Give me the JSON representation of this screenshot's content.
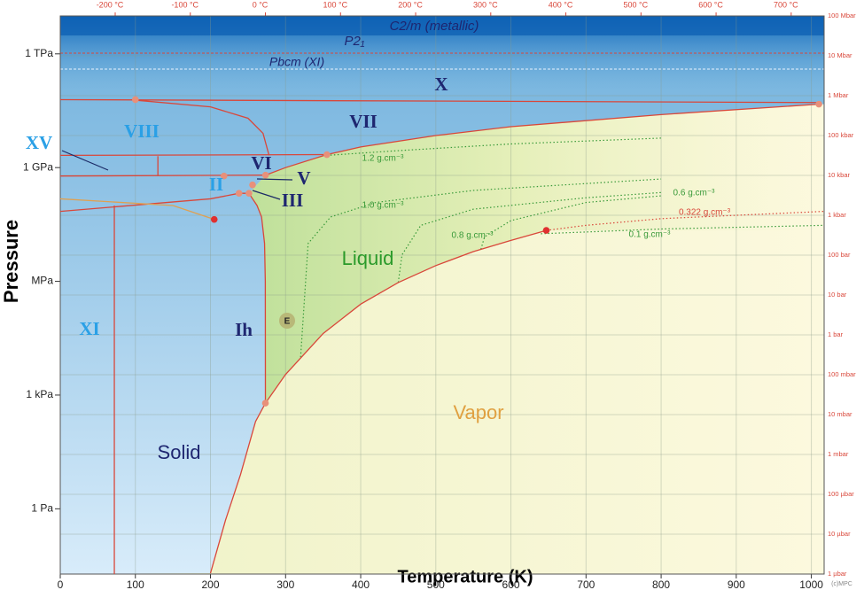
{
  "chart_data": {
    "type": "phase-diagram",
    "x_label": "Temperature (K)",
    "y_label": "Pressure",
    "xlim": [
      0,
      1017
    ],
    "xticks": [
      0,
      100,
      200,
      300,
      400,
      500,
      600,
      700,
      800,
      900,
      1000
    ],
    "ylim": [
      0.019,
      10000000000000.0
    ],
    "log_y": true,
    "yticks": [
      {
        "value": 1,
        "label": "1 Pa"
      },
      {
        "value": 1000,
        "label": "1 kPa"
      },
      {
        "value": 1000000,
        "label": "MPa"
      },
      {
        "value": 1000000000,
        "label": "1 GPa"
      },
      {
        "value": 1000000000000,
        "label": "1 TPa"
      }
    ],
    "x2lim": [
      -273.15,
      743.85
    ],
    "x2ticks": [
      {
        "value": -200,
        "label": "-200 °C"
      },
      {
        "value": -100,
        "label": "-100 °C"
      },
      {
        "value": 0,
        "label": "0 °C"
      },
      {
        "value": 100,
        "label": "100 °C"
      },
      {
        "value": 200,
        "label": "200 °C"
      },
      {
        "value": 300,
        "label": "300 °C"
      },
      {
        "value": 400,
        "label": "400 °C"
      },
      {
        "value": 500,
        "label": "500 °C"
      },
      {
        "value": 600,
        "label": "600 °C"
      },
      {
        "value": 700,
        "label": "700 °C"
      }
    ],
    "y2lim": [
      1e-06,
      100000000.0
    ],
    "y2ticks": [
      {
        "value": 1e-06,
        "label": "1 µbar"
      },
      {
        "value": 1e-05,
        "label": "10 µbar"
      },
      {
        "value": 0.0001,
        "label": "100 µbar"
      },
      {
        "value": 0.001,
        "label": "1 mbar"
      },
      {
        "value": 0.01,
        "label": "10 mbar"
      },
      {
        "value": 0.1,
        "label": "100 mbar"
      },
      {
        "value": 1,
        "label": "1 bar"
      },
      {
        "value": 10,
        "label": "10 bar"
      },
      {
        "value": 100,
        "label": "100 bar"
      },
      {
        "value": 1000,
        "label": "1 kbar"
      },
      {
        "value": 10000,
        "label": "10 kbar"
      },
      {
        "value": 100000,
        "label": "100 kbar"
      },
      {
        "value": 1000000,
        "label": "1 Mbar"
      },
      {
        "value": 10000000,
        "label": "10 Mbar"
      },
      {
        "value": 100000000,
        "label": "100 Mbar"
      }
    ],
    "grid": true,
    "boundaries": [
      {
        "color": "#d9473a",
        "x": [
          200,
          220,
          240,
          260,
          273.16
        ],
        "y": [
          0.02,
          0.5,
          8,
          200,
          611.657
        ]
      },
      {
        "color": "#d9473a",
        "x": [
          273.16,
          300,
          350,
          400,
          450,
          500,
          550,
          600,
          647.1
        ],
        "y": [
          611.657,
          3500,
          42000,
          250000,
          930000,
          2600000,
          6100000,
          12000000,
          22064000
        ]
      },
      {
        "color": "#d9473a",
        "x": [
          273.16,
          273,
          272,
          268,
          262,
          251.2
        ],
        "y": [
          611.657,
          1000000,
          10000000,
          50000000,
          100000000,
          210000000
        ]
      },
      {
        "color": "#d9473a",
        "x": [
          273.3,
          300,
          355
        ],
        "y": [
          632000000,
          1000000000,
          2200000000
        ]
      },
      {
        "color": "#d9473a",
        "x": [
          355,
          400,
          500,
          600,
          800,
          1010
        ],
        "y": [
          2200000000,
          3500000000,
          7000000000,
          12000000000,
          25000000000,
          47000000000
        ]
      },
      {
        "color": "#d9473a",
        "x": [
          0,
          1010
        ],
        "y": [
          62000000000,
          52000000000
        ]
      },
      {
        "color": "#d9473a",
        "x": [
          100,
          200,
          250,
          270,
          278
        ],
        "y": [
          60000000000,
          40000000000,
          20000000000,
          8000000000,
          2100000000
        ]
      },
      {
        "color": "#d9473a",
        "x": [
          0,
          355
        ],
        "y": [
          2100000000,
          2200000000
        ]
      },
      {
        "color": "#d9473a",
        "x": [
          0,
          273.3
        ],
        "y": [
          600000000,
          632000000
        ]
      },
      {
        "color": "#d9473a",
        "x": [
          0,
          200,
          238,
          251.2
        ],
        "y": [
          70000000,
          150000000,
          210000000,
          210000000
        ]
      },
      {
        "color": "#d9473a",
        "x": [
          72,
          72
        ],
        "y": [
          0.019,
          100000000
        ]
      },
      {
        "color": "#d9473a",
        "x": [
          130,
          130
        ],
        "y": [
          600000000,
          2000000000
        ]
      },
      {
        "color": "#e0a050",
        "x": [
          0,
          150,
          205
        ],
        "y": [
          150000000,
          100000000,
          43000000
        ]
      }
    ],
    "isochores": [
      {
        "label": "1.2 g.cm⁻³",
        "color": "#3a9a3a",
        "x": [
          355,
          450,
          600,
          800
        ],
        "y": [
          2100000000,
          2800000000,
          4200000000,
          6000000000
        ]
      },
      {
        "label": "1.0 g.cm⁻³",
        "color": "#3a9a3a",
        "x": [
          320,
          330,
          360,
          420,
          550,
          800
        ],
        "y": [
          10000,
          10000000,
          50000000,
          120000000,
          250000000,
          500000000
        ]
      },
      {
        "label": "0.8 g.cm⁻³",
        "color": "#3a9a3a",
        "x": [
          450,
          455,
          480,
          550,
          700,
          800
        ],
        "y": [
          930000,
          5000000,
          30000000,
          80000000,
          160000000,
          220000000
        ]
      },
      {
        "label": "0.6 g.cm⁻³",
        "color": "#3a9a3a",
        "x": [
          560,
          565,
          600,
          700,
          800
        ],
        "y": [
          7000000,
          15000000,
          40000000,
          120000000,
          180000000
        ]
      },
      {
        "label": "0.322 g.cm⁻³",
        "color": "#d9473a",
        "x": [
          647.1,
          700,
          800,
          1017
        ],
        "y": [
          22064000,
          30000000,
          45000000,
          70000000
        ]
      },
      {
        "label": "0.1 g.cm⁻³",
        "color": "#3a9a3a",
        "x": [
          640,
          700,
          800,
          1017
        ],
        "y": [
          18000000,
          20000000,
          24000000,
          30000000
        ]
      }
    ],
    "points": {
      "x": [
        273.16,
        251.2,
        256,
        273.3,
        355,
        100,
        1010,
        238,
        218,
        647.1,
        205
      ],
      "y": [
        611.657,
        210000000,
        350000000,
        632000000,
        2200000000,
        62000000000,
        47000000000,
        210000000,
        600000000,
        22064000,
        43000000
      ],
      "colors": [
        "#e8907a",
        "#e8907a",
        "#e8907a",
        "#e8907a",
        "#e8907a",
        "#e8907a",
        "#e8907a",
        "#e8907a",
        "#e8907a",
        "#e03030",
        "#e03030"
      ]
    },
    "regions": [
      "X",
      "VII",
      "VIII",
      "XV",
      "VI",
      "V",
      "II",
      "III",
      "Ih",
      "XI",
      "Solid",
      "Liquid",
      "Vapor"
    ],
    "annotations": [
      "C2/m (metallic)",
      "P2₁",
      "Pbcm (XI)",
      "E",
      "(c)MPC"
    ]
  }
}
